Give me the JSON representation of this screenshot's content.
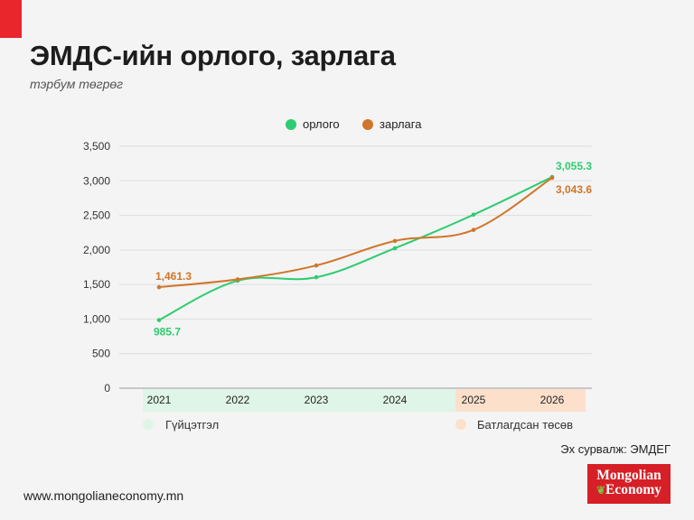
{
  "header": {
    "title": "ЭМДС-ийн орлого, зарлага",
    "subtitle": "тэрбум төгрөг"
  },
  "footer": {
    "source": "Эх сурвалж: ЭМДЕГ",
    "website": "www.mongolianeconomy.mn",
    "logo_line1": "Mongolian",
    "logo_line2": "Economy"
  },
  "chart_data": {
    "type": "line",
    "categories": [
      "2021",
      "2022",
      "2023",
      "2024",
      "2025",
      "2026"
    ],
    "series": [
      {
        "name": "орлого",
        "color": "#2ecc71",
        "values": [
          985.7,
          1555,
          1605,
          2025,
          2510,
          3055.3
        ]
      },
      {
        "name": "зарлага",
        "color": "#d0762a",
        "values": [
          1461.3,
          1575,
          1775,
          2130,
          2290,
          3043.6
        ]
      }
    ],
    "data_labels": [
      {
        "series": 0,
        "index": 0,
        "text": "985.7"
      },
      {
        "series": 0,
        "index": 5,
        "text": "3,055.3"
      },
      {
        "series": 1,
        "index": 0,
        "text": "1,461.3"
      },
      {
        "series": 1,
        "index": 5,
        "text": "3,043.6"
      }
    ],
    "ylim": [
      0,
      3500
    ],
    "yticks": [
      "0",
      "500",
      "1,000",
      "1,500",
      "2,000",
      "2,500",
      "3,000",
      "3,500"
    ],
    "grid": true,
    "legend_position": "top-center",
    "periods": [
      {
        "label": "Гүйцэтгэл",
        "from": 0,
        "to": 3,
        "color": "#dff5e7"
      },
      {
        "label": "Батлагдсан төсөв",
        "from": 4,
        "to": 5,
        "color": "#fde0cc"
      }
    ]
  }
}
